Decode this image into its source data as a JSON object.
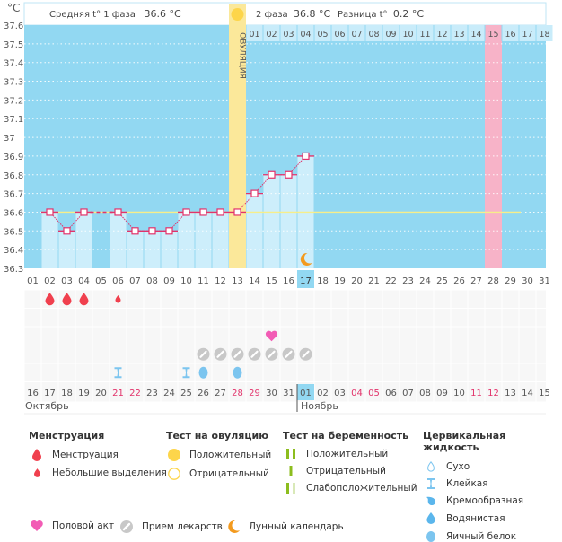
{
  "header": {
    "unit": "°C",
    "phase1_label": "Средняя t° 1 фаза",
    "phase1_value": "36.6 °C",
    "phase2_label": "2 фаза",
    "phase2_value": "36.8 °C",
    "diff_label": "Разница t°",
    "diff_value": "0.2 °C",
    "ovulation_label": "ОВУЛЯЦИЯ"
  },
  "chart_data": {
    "type": "line",
    "title": "",
    "ylabel": "°C",
    "ylim": [
      36.3,
      37.6
    ],
    "yticks": [
      "37.6",
      "37.5",
      "37.4",
      "37.3",
      "37.2",
      "37.1",
      "37",
      "36.9",
      "36.8",
      "36.7",
      "36.6",
      "36.5",
      "36.4",
      "36.3"
    ],
    "grid": true,
    "cycle_days": [
      "01",
      "02",
      "03",
      "04",
      "05",
      "06",
      "07",
      "08",
      "09",
      "10",
      "11",
      "12",
      "13",
      "14",
      "15",
      "16",
      "17",
      "18",
      "19",
      "20",
      "21",
      "22",
      "23",
      "24",
      "25",
      "26",
      "27",
      "28",
      "29",
      "30",
      "31"
    ],
    "temperatures": [
      null,
      36.6,
      36.5,
      36.6,
      null,
      36.6,
      36.5,
      36.5,
      36.5,
      36.6,
      36.6,
      36.6,
      36.6,
      36.7,
      36.8,
      36.8,
      36.9,
      null,
      null,
      null,
      null,
      null,
      null,
      null,
      null,
      null,
      null,
      null,
      null,
      null,
      null
    ],
    "coverline": 36.6,
    "ovulation_day": 13,
    "current_day": 17,
    "luteal_day_numbers": [
      "01",
      "02",
      "03",
      "04",
      "05",
      "06",
      "07",
      "08",
      "09",
      "10",
      "11",
      "12",
      "13",
      "14",
      "15",
      "16",
      "17",
      "18"
    ],
    "expected_period_day": 28,
    "moon_day": 17,
    "calendar_dates": [
      "16",
      "17",
      "18",
      "19",
      "20",
      "21",
      "22",
      "23",
      "24",
      "25",
      "26",
      "27",
      "28",
      "29",
      "30",
      "31",
      "01",
      "02",
      "03",
      "04",
      "05",
      "06",
      "07",
      "08",
      "09",
      "10",
      "11",
      "12",
      "13",
      "14",
      "15"
    ],
    "weekend_dates_index": [
      5,
      6,
      12,
      13,
      19,
      20,
      26,
      27
    ],
    "today_date_index": 16,
    "months": [
      {
        "label": "Октябрь",
        "start_index": 0
      },
      {
        "label": "Ноябрь",
        "start_index": 16
      }
    ],
    "menstruation": [
      null,
      "heavy",
      "heavy",
      "heavy",
      null,
      "light",
      null,
      null,
      null,
      null,
      null,
      null,
      null,
      null,
      null,
      null,
      null,
      null,
      null,
      null,
      null,
      null,
      null,
      null,
      null,
      null,
      null,
      null,
      null,
      null,
      null
    ],
    "intercourse_days": [
      15
    ],
    "medication_days": [
      11,
      12,
      13,
      14,
      15,
      16,
      17
    ],
    "cervical_fluid": [
      null,
      null,
      null,
      null,
      null,
      "sticky",
      null,
      null,
      null,
      "sticky",
      "egg-white",
      null,
      "egg-white",
      null,
      null,
      null,
      null,
      null,
      null,
      null,
      null,
      null,
      null,
      null,
      null,
      null,
      null,
      null,
      null,
      null,
      null
    ]
  },
  "legend": {
    "menstruation": {
      "title": "Менструация",
      "items": [
        "Менструация",
        "Небольшие выделения"
      ]
    },
    "ovulation_test": {
      "title": "Тест на овуляцию",
      "items": [
        "Положительный",
        "Отрицательный"
      ]
    },
    "pregnancy_test": {
      "title": "Тест на беременность",
      "items": [
        "Положительный",
        "Отрицательный",
        "Слабоположительный"
      ]
    },
    "cervical_fluid": {
      "title": "Цервикальная жидкость",
      "items": [
        "Сухо",
        "Клейкая",
        "Кремообразная",
        "Водянистая",
        "Яичный белок"
      ]
    },
    "bottom": [
      "Половой акт",
      "Прием лекарств",
      "Лунный календарь"
    ]
  },
  "colors": {
    "chart_bg": "#92d8f2",
    "bar": "#cdeefb",
    "line": "#e2336b",
    "coverline": "#f7ee8a",
    "ovulation": "#fbe89a",
    "period": "#f7b3c8",
    "menstruation": "#f0404e",
    "heart": "#f25cb5",
    "pill": "#c8c8c8",
    "moon": "#f39a1e",
    "fluid": "#7cc5ef",
    "pregnancy": "#8cbd1e",
    "weekend": "#e2336b",
    "today": "#92d8f2"
  }
}
